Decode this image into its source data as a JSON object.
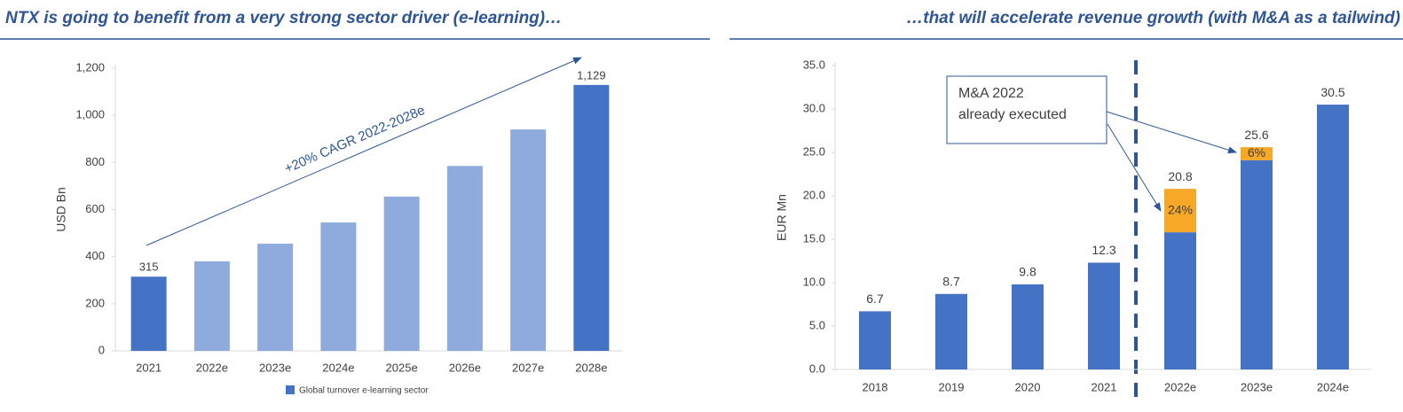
{
  "chart_data": [
    {
      "type": "bar",
      "title": "NTX is going to benefit from a very strong sector driver (e-learning)…",
      "ylabel": "USD Bn",
      "categories": [
        "2021",
        "2022e",
        "2023e",
        "2024e",
        "2025e",
        "2026e",
        "2027e",
        "2028e"
      ],
      "values": [
        315,
        380,
        455,
        545,
        655,
        785,
        940,
        1129
      ],
      "value_labels": [
        "315",
        null,
        null,
        null,
        null,
        null,
        null,
        "1,129"
      ],
      "colors": [
        "#4472c4",
        "#8faadc",
        "#8faadc",
        "#8faadc",
        "#8faadc",
        "#8faadc",
        "#8faadc",
        "#4472c4"
      ],
      "legend": {
        "label": "Global turnover e-learning sector",
        "color": "#4472c4"
      },
      "annotation": "+20% CAGR 2022-2028e",
      "ylim": [
        0,
        1200
      ],
      "yticks": [
        0,
        200,
        400,
        600,
        800,
        {
          "value": 1000,
          "label": "1,000"
        },
        {
          "value": 1200,
          "label": "1,200"
        }
      ]
    },
    {
      "type": "stacked_bar",
      "title": "…that will accelerate revenue growth (with M&A as a tailwind)",
      "ylabel": "EUR Mn",
      "categories": [
        "2018",
        "2019",
        "2020",
        "2021",
        "2022e",
        "2023e",
        "2024e"
      ],
      "series": [
        {
          "color": "#4472c4",
          "values": [
            6.7,
            8.7,
            9.8,
            12.3,
            15.8,
            24.1,
            30.5
          ]
        },
        {
          "color": "#f7a826",
          "values": [
            null,
            null,
            null,
            null,
            5.0,
            1.5,
            null
          ]
        }
      ],
      "share_labels": [
        null,
        null,
        null,
        null,
        "24%",
        "6%",
        null
      ],
      "totals": [
        6.7,
        8.7,
        9.8,
        12.3,
        20.8,
        25.6,
        30.5
      ],
      "annotation": [
        "M&A 2022",
        "already executed"
      ],
      "ylim": [
        0,
        35
      ],
      "yticks": [
        {
          "value": 0,
          "label": "0.0"
        },
        {
          "value": 5,
          "label": "5.0"
        },
        {
          "value": 10,
          "label": "10.0"
        },
        {
          "value": 15,
          "label": "15.0"
        },
        {
          "value": 20,
          "label": "20.0"
        },
        {
          "value": 25,
          "label": "25.0"
        },
        {
          "value": 30,
          "label": "30.0"
        },
        {
          "value": 35,
          "label": "35.0"
        }
      ]
    }
  ]
}
